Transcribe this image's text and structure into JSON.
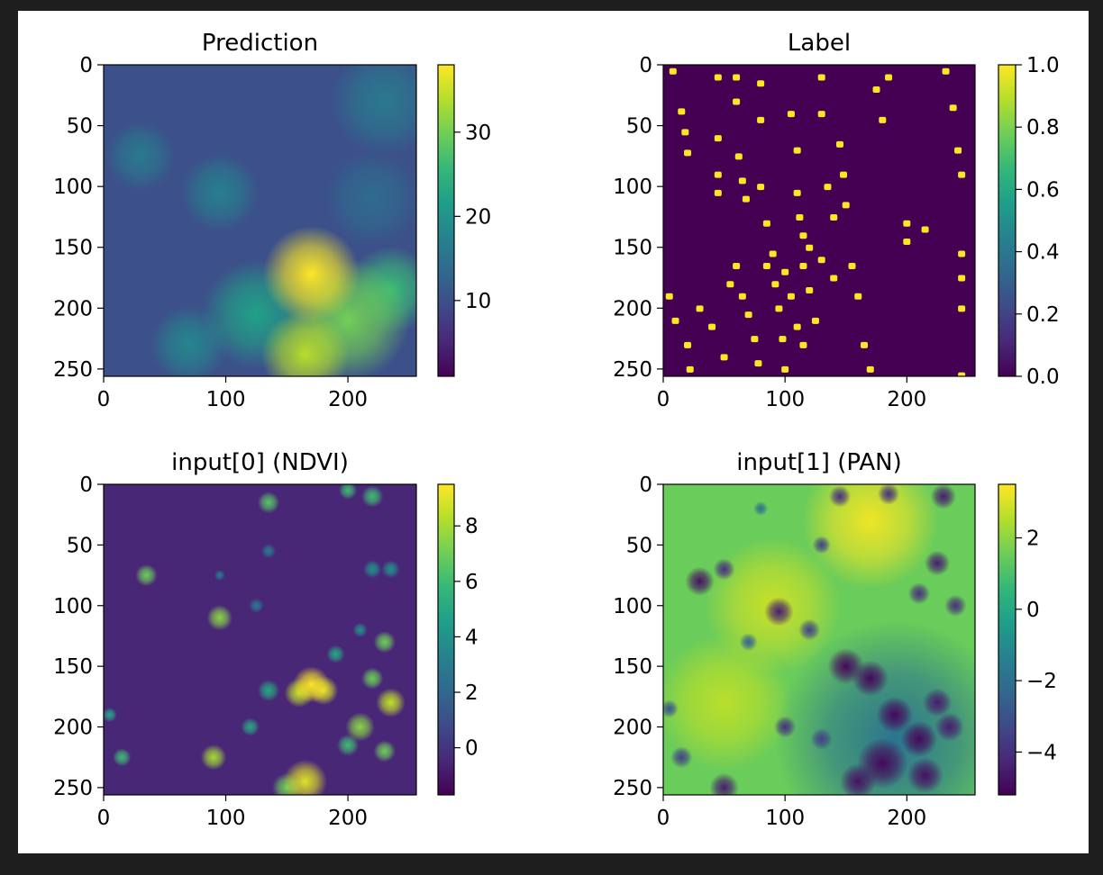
{
  "chart_data": [
    {
      "type": "heatmap",
      "title": "Prediction",
      "xlim": [
        0,
        256
      ],
      "ylim": [
        256,
        0
      ],
      "xticks": [
        0,
        100,
        200
      ],
      "yticks": [
        0,
        50,
        100,
        150,
        200,
        250
      ],
      "colormap": "viridis",
      "colorbar": {
        "range": [
          1,
          38
        ],
        "ticks": [
          10,
          20,
          30
        ]
      },
      "blobs": [
        {
          "x": 170,
          "y": 172,
          "r": 22,
          "v": 38
        },
        {
          "x": 200,
          "y": 210,
          "r": 28,
          "v": 30
        },
        {
          "x": 165,
          "y": 238,
          "r": 20,
          "v": 34
        },
        {
          "x": 235,
          "y": 185,
          "r": 20,
          "v": 26
        },
        {
          "x": 125,
          "y": 205,
          "r": 25,
          "v": 22
        },
        {
          "x": 95,
          "y": 105,
          "r": 18,
          "v": 17
        },
        {
          "x": 30,
          "y": 75,
          "r": 16,
          "v": 16
        },
        {
          "x": 230,
          "y": 30,
          "r": 25,
          "v": 16
        },
        {
          "x": 70,
          "y": 230,
          "r": 18,
          "v": 18
        },
        {
          "x": 220,
          "y": 110,
          "r": 22,
          "v": 14
        }
      ],
      "base_value": 10
    },
    {
      "type": "heatmap",
      "title": "Label",
      "xlim": [
        0,
        256
      ],
      "ylim": [
        256,
        0
      ],
      "xticks": [
        0,
        100,
        200
      ],
      "yticks": [
        0,
        50,
        100,
        150,
        200,
        250
      ],
      "colormap": "viridis",
      "colorbar": {
        "range": [
          0,
          1
        ],
        "ticks": [
          "0.0",
          "0.2",
          "0.4",
          "0.6",
          "0.8",
          "1.0"
        ]
      },
      "points": [
        [
          8,
          5
        ],
        [
          15,
          38
        ],
        [
          18,
          55
        ],
        [
          20,
          72
        ],
        [
          45,
          10
        ],
        [
          45,
          60
        ],
        [
          45,
          90
        ],
        [
          45,
          105
        ],
        [
          60,
          10
        ],
        [
          60,
          30
        ],
        [
          62,
          75
        ],
        [
          65,
          95
        ],
        [
          68,
          110
        ],
        [
          80,
          15
        ],
        [
          80,
          45
        ],
        [
          80,
          100
        ],
        [
          85,
          130
        ],
        [
          90,
          155
        ],
        [
          92,
          180
        ],
        [
          95,
          200
        ],
        [
          98,
          225
        ],
        [
          100,
          250
        ],
        [
          105,
          40
        ],
        [
          110,
          70
        ],
        [
          110,
          105
        ],
        [
          112,
          125
        ],
        [
          115,
          140
        ],
        [
          115,
          165
        ],
        [
          120,
          185
        ],
        [
          125,
          210
        ],
        [
          130,
          10
        ],
        [
          130,
          40
        ],
        [
          135,
          100
        ],
        [
          140,
          125
        ],
        [
          145,
          65
        ],
        [
          148,
          90
        ],
        [
          150,
          115
        ],
        [
          155,
          165
        ],
        [
          160,
          190
        ],
        [
          165,
          230
        ],
        [
          170,
          250
        ],
        [
          175,
          20
        ],
        [
          180,
          45
        ],
        [
          185,
          10
        ],
        [
          200,
          130
        ],
        [
          200,
          145
        ],
        [
          215,
          135
        ],
        [
          232,
          5
        ],
        [
          238,
          35
        ],
        [
          242,
          70
        ],
        [
          245,
          90
        ],
        [
          245,
          155
        ],
        [
          245,
          175
        ],
        [
          245,
          200
        ],
        [
          245,
          255
        ],
        [
          30,
          200
        ],
        [
          40,
          215
        ],
        [
          50,
          240
        ],
        [
          55,
          180
        ],
        [
          60,
          165
        ],
        [
          65,
          190
        ],
        [
          70,
          205
        ],
        [
          75,
          225
        ],
        [
          78,
          245
        ],
        [
          85,
          165
        ],
        [
          100,
          170
        ],
        [
          105,
          190
        ],
        [
          110,
          215
        ],
        [
          115,
          230
        ],
        [
          120,
          150
        ],
        [
          20,
          230
        ],
        [
          22,
          250
        ],
        [
          5,
          190
        ],
        [
          10,
          210
        ],
        [
          130,
          160
        ],
        [
          140,
          175
        ]
      ],
      "point_value": 1
    },
    {
      "type": "heatmap",
      "title": "input[0] (NDVI)",
      "xlim": [
        0,
        256
      ],
      "ylim": [
        256,
        0
      ],
      "xticks": [
        0,
        100,
        200
      ],
      "yticks": [
        0,
        50,
        100,
        150,
        200,
        250
      ],
      "colormap": "viridis",
      "colorbar": {
        "range": [
          -1.7,
          9.5
        ],
        "ticks": [
          0,
          2,
          4,
          6,
          8
        ]
      },
      "base_value": -0.5,
      "blobs": [
        {
          "x": 170,
          "y": 165,
          "r": 10,
          "v": 9.5
        },
        {
          "x": 180,
          "y": 170,
          "r": 8,
          "v": 9
        },
        {
          "x": 160,
          "y": 172,
          "r": 8,
          "v": 8.5
        },
        {
          "x": 235,
          "y": 180,
          "r": 8,
          "v": 8.5
        },
        {
          "x": 220,
          "y": 160,
          "r": 6,
          "v": 7
        },
        {
          "x": 230,
          "y": 130,
          "r": 6,
          "v": 7
        },
        {
          "x": 210,
          "y": 200,
          "r": 8,
          "v": 7.5
        },
        {
          "x": 200,
          "y": 215,
          "r": 6,
          "v": 6
        },
        {
          "x": 230,
          "y": 220,
          "r": 6,
          "v": 7
        },
        {
          "x": 165,
          "y": 245,
          "r": 12,
          "v": 9
        },
        {
          "x": 150,
          "y": 250,
          "r": 8,
          "v": 7
        },
        {
          "x": 90,
          "y": 225,
          "r": 7,
          "v": 8
        },
        {
          "x": 95,
          "y": 110,
          "r": 7,
          "v": 7.5
        },
        {
          "x": 35,
          "y": 75,
          "r": 6,
          "v": 7
        },
        {
          "x": 135,
          "y": 15,
          "r": 6,
          "v": 6.5
        },
        {
          "x": 220,
          "y": 10,
          "r": 6,
          "v": 6
        },
        {
          "x": 200,
          "y": 5,
          "r": 5,
          "v": 6
        },
        {
          "x": 220,
          "y": 70,
          "r": 5,
          "v": 4
        },
        {
          "x": 235,
          "y": 70,
          "r": 5,
          "v": 4
        },
        {
          "x": 15,
          "y": 225,
          "r": 5,
          "v": 6
        },
        {
          "x": 5,
          "y": 190,
          "r": 4,
          "v": 5
        },
        {
          "x": 135,
          "y": 170,
          "r": 6,
          "v": 5
        },
        {
          "x": 120,
          "y": 200,
          "r": 5,
          "v": 5
        },
        {
          "x": 190,
          "y": 140,
          "r": 5,
          "v": 5
        },
        {
          "x": 135,
          "y": 55,
          "r": 4,
          "v": 3
        },
        {
          "x": 95,
          "y": 75,
          "r": 3,
          "v": 3
        },
        {
          "x": 125,
          "y": 100,
          "r": 4,
          "v": 3
        },
        {
          "x": 210,
          "y": 120,
          "r": 4,
          "v": 4
        }
      ]
    },
    {
      "type": "heatmap",
      "title": "input[1] (PAN)",
      "xlim": [
        0,
        256
      ],
      "ylim": [
        256,
        0
      ],
      "xticks": [
        0,
        100,
        200
      ],
      "yticks": [
        0,
        50,
        100,
        150,
        200,
        250
      ],
      "colormap": "viridis",
      "colorbar": {
        "range": [
          -5.2,
          3.5
        ],
        "ticks": [
          "−4",
          "−2",
          "0",
          "2"
        ]
      },
      "base_value": 1.5,
      "bright": [
        {
          "x": 170,
          "y": 30,
          "r": 40,
          "v": 3.3
        },
        {
          "x": 90,
          "y": 100,
          "r": 40,
          "v": 2.8
        },
        {
          "x": 50,
          "y": 180,
          "r": 40,
          "v": 2.6
        }
      ],
      "dark_region": {
        "x": 190,
        "y": 210,
        "r": 70,
        "v": -1.8
      },
      "blobs": [
        {
          "x": 30,
          "y": 80,
          "r": 8,
          "v": -4.8
        },
        {
          "x": 50,
          "y": 70,
          "r": 6,
          "v": -4
        },
        {
          "x": 95,
          "y": 105,
          "r": 8,
          "v": -4.5
        },
        {
          "x": 120,
          "y": 120,
          "r": 6,
          "v": -3.5
        },
        {
          "x": 150,
          "y": 150,
          "r": 10,
          "v": -5
        },
        {
          "x": 170,
          "y": 160,
          "r": 10,
          "v": -5
        },
        {
          "x": 190,
          "y": 190,
          "r": 10,
          "v": -5
        },
        {
          "x": 210,
          "y": 210,
          "r": 10,
          "v": -5
        },
        {
          "x": 225,
          "y": 180,
          "r": 8,
          "v": -4.5
        },
        {
          "x": 180,
          "y": 230,
          "r": 14,
          "v": -5
        },
        {
          "x": 160,
          "y": 245,
          "r": 10,
          "v": -4.8
        },
        {
          "x": 215,
          "y": 240,
          "r": 10,
          "v": -4.8
        },
        {
          "x": 235,
          "y": 200,
          "r": 8,
          "v": -4.5
        },
        {
          "x": 240,
          "y": 100,
          "r": 6,
          "v": -4
        },
        {
          "x": 225,
          "y": 65,
          "r": 7,
          "v": -4.5
        },
        {
          "x": 210,
          "y": 90,
          "r": 6,
          "v": -4
        },
        {
          "x": 130,
          "y": 50,
          "r": 5,
          "v": -3.5
        },
        {
          "x": 145,
          "y": 10,
          "r": 6,
          "v": -4
        },
        {
          "x": 185,
          "y": 8,
          "r": 6,
          "v": -4
        },
        {
          "x": 230,
          "y": 10,
          "r": 7,
          "v": -4.5
        },
        {
          "x": 100,
          "y": 200,
          "r": 6,
          "v": -4
        },
        {
          "x": 130,
          "y": 210,
          "r": 6,
          "v": -3.5
        },
        {
          "x": 15,
          "y": 225,
          "r": 6,
          "v": -3.5
        },
        {
          "x": 50,
          "y": 250,
          "r": 8,
          "v": -4.5
        },
        {
          "x": 5,
          "y": 185,
          "r": 5,
          "v": -3
        },
        {
          "x": 70,
          "y": 130,
          "r": 5,
          "v": -2.5
        },
        {
          "x": 80,
          "y": 20,
          "r": 4,
          "v": -2
        }
      ]
    }
  ]
}
